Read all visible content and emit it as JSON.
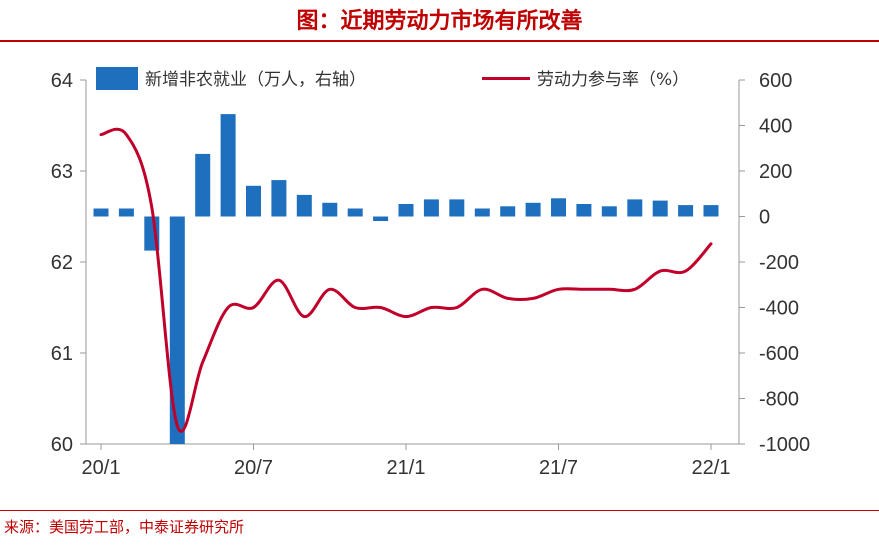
{
  "title": "图：近期劳动力市场有所改善",
  "source": "来源：美国劳工部，中泰证券研究所",
  "colors": {
    "bar": "#1f6fbf",
    "line": "#c0002a",
    "title": "#c00000",
    "axis": "#999999"
  },
  "chart_data": {
    "type": "bar+line",
    "title": "图：近期劳动力市场有所改善",
    "x_tick_labels": [
      "20/1",
      "20/7",
      "21/1",
      "21/7",
      "22/1"
    ],
    "x_tick_dates": [
      "2020-01",
      "2020-07",
      "2021-01",
      "2021-07",
      "2022-01"
    ],
    "legend_position": "top",
    "grid": false,
    "y_left": {
      "ylim": [
        60,
        64
      ],
      "ticks": [
        "64",
        "63",
        "62",
        "61",
        "60"
      ]
    },
    "y_right": {
      "ylim": [
        -1000,
        600
      ],
      "ticks": [
        "600",
        "400",
        "200",
        "0",
        "-200",
        "-400",
        "-600",
        "-800",
        "-1000"
      ]
    },
    "series": [
      {
        "name": "新增非农就业（万人，右轴）",
        "type": "bar",
        "axis": "right",
        "x": [
          "2020-01",
          "2020-02",
          "2020-03",
          "2020-04",
          "2020-05",
          "2020-06",
          "2020-07",
          "2020-08",
          "2020-09",
          "2020-10",
          "2020-11",
          "2020-12",
          "2021-01",
          "2021-02",
          "2021-03",
          "2021-04",
          "2021-05",
          "2021-06",
          "2021-07",
          "2021-08",
          "2021-09",
          "2021-10",
          "2021-11",
          "2021-12",
          "2022-01"
        ],
        "values": [
          35,
          35,
          -150,
          -1000,
          275,
          450,
          135,
          160,
          95,
          60,
          35,
          -20,
          55,
          75,
          75,
          35,
          45,
          60,
          80,
          55,
          45,
          75,
          70,
          50,
          50
        ]
      },
      {
        "name": "劳动力参与率（%）",
        "type": "line",
        "axis": "left",
        "x": [
          "2020-01",
          "2020-02",
          "2020-03",
          "2020-04",
          "2020-05",
          "2020-06",
          "2020-07",
          "2020-08",
          "2020-09",
          "2020-10",
          "2020-11",
          "2020-12",
          "2021-01",
          "2021-02",
          "2021-03",
          "2021-04",
          "2021-05",
          "2021-06",
          "2021-07",
          "2021-08",
          "2021-09",
          "2021-10",
          "2021-11",
          "2021-12",
          "2022-01"
        ],
        "values": [
          63.4,
          63.4,
          62.6,
          60.2,
          60.9,
          61.5,
          61.5,
          61.8,
          61.4,
          61.7,
          61.5,
          61.5,
          61.4,
          61.5,
          61.5,
          61.7,
          61.6,
          61.6,
          61.7,
          61.7,
          61.7,
          61.7,
          61.9,
          61.9,
          62.2
        ]
      }
    ]
  }
}
